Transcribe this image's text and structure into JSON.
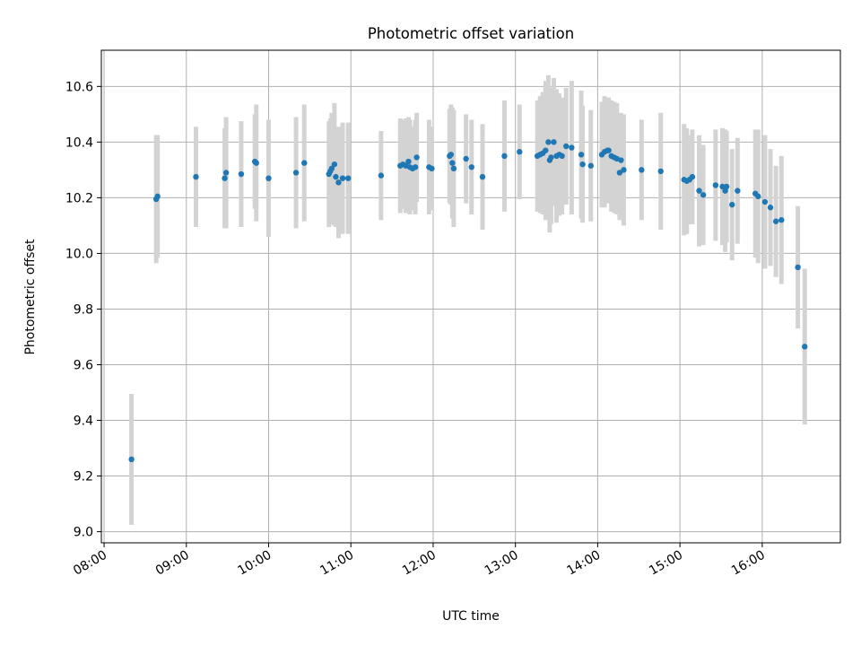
{
  "chart_data": {
    "type": "scatter",
    "title": "Photometric offset variation",
    "xlabel": "UTC time",
    "ylabel": "Photometric offset",
    "xlim": [
      "07:58",
      "16:57"
    ],
    "ylim": [
      8.96,
      10.73
    ],
    "grid": true,
    "x_ticks": [
      "08:00",
      "09:00",
      "10:00",
      "11:00",
      "12:00",
      "13:00",
      "14:00",
      "15:00",
      "16:00"
    ],
    "y_ticks": [
      "9.0",
      "9.2",
      "9.4",
      "9.6",
      "9.8",
      "10.0",
      "10.2",
      "10.4",
      "10.6"
    ],
    "colors": {
      "point": "#1f77b4",
      "errorbar": "#d3d3d3",
      "grid": "#b0b0b0"
    },
    "series": [
      {
        "x": [
          "08:20",
          "08:38",
          "08:39",
          "09:07",
          "09:28",
          "09:29",
          "09:40",
          "09:50",
          "09:51",
          "10:00",
          "10:20",
          "10:26",
          "10:44",
          "10:45",
          "10:46",
          "10:48",
          "10:49",
          "10:51",
          "10:54",
          "10:58",
          "11:22",
          "11:36",
          "11:38",
          "11:40",
          "11:42",
          "11:43",
          "11:45",
          "11:47",
          "11:48",
          "11:57",
          "11:59",
          "12:12",
          "12:13",
          "12:14",
          "12:15",
          "12:24",
          "12:28",
          "12:36",
          "12:52",
          "13:03",
          "13:16",
          "13:18",
          "13:20",
          "13:22",
          "13:24",
          "13:25",
          "13:26",
          "13:28",
          "13:30",
          "13:32",
          "13:34",
          "13:37",
          "13:41",
          "13:48",
          "13:49",
          "13:55",
          "14:03",
          "14:05",
          "14:07",
          "14:08",
          "14:10",
          "14:12",
          "14:14",
          "14:16",
          "14:17",
          "14:19",
          "14:32",
          "14:46",
          "15:03",
          "15:05",
          "15:07",
          "15:09",
          "15:14",
          "15:17",
          "15:26",
          "15:31",
          "15:33",
          "15:34",
          "15:38",
          "15:42",
          "15:55",
          "15:57",
          "16:02",
          "16:06",
          "16:10",
          "16:14",
          "16:26",
          "16:31"
        ],
        "y": [
          9.26,
          10.195,
          10.205,
          10.275,
          10.27,
          10.29,
          10.285,
          10.33,
          10.325,
          10.27,
          10.29,
          10.325,
          10.285,
          10.295,
          10.305,
          10.32,
          10.275,
          10.255,
          10.27,
          10.27,
          10.28,
          10.315,
          10.32,
          10.315,
          10.33,
          10.31,
          10.305,
          10.31,
          10.345,
          10.31,
          10.305,
          10.35,
          10.355,
          10.325,
          10.305,
          10.34,
          10.31,
          10.275,
          10.35,
          10.365,
          10.35,
          10.355,
          10.36,
          10.37,
          10.4,
          10.335,
          10.345,
          10.4,
          10.35,
          10.355,
          10.35,
          10.385,
          10.38,
          10.355,
          10.32,
          10.315,
          10.355,
          10.365,
          10.37,
          10.37,
          10.35,
          10.345,
          10.34,
          10.29,
          10.335,
          10.3,
          10.3,
          10.295,
          10.265,
          10.26,
          10.265,
          10.275,
          10.225,
          10.21,
          10.245,
          10.24,
          10.225,
          10.24,
          10.175,
          10.225,
          10.215,
          10.205,
          10.185,
          10.165,
          10.115,
          10.12,
          9.95,
          9.665
        ],
        "err": [
          0.235,
          0.23,
          0.22,
          0.18,
          0.18,
          0.2,
          0.19,
          0.17,
          0.21,
          0.21,
          0.2,
          0.21,
          0.19,
          0.19,
          0.2,
          0.22,
          0.18,
          0.2,
          0.2,
          0.2,
          0.16,
          0.17,
          0.16,
          0.17,
          0.16,
          0.17,
          0.15,
          0.17,
          0.16,
          0.17,
          0.15,
          0.17,
          0.18,
          0.2,
          0.21,
          0.16,
          0.17,
          0.19,
          0.2,
          0.17,
          0.2,
          0.21,
          0.22,
          0.25,
          0.24,
          0.26,
          0.24,
          0.23,
          0.24,
          0.22,
          0.21,
          0.21,
          0.24,
          0.23,
          0.21,
          0.2,
          0.19,
          0.2,
          0.19,
          0.19,
          0.2,
          0.2,
          0.2,
          0.17,
          0.17,
          0.2,
          0.18,
          0.21,
          0.2,
          0.19,
          0.16,
          0.17,
          0.2,
          0.18,
          0.2,
          0.21,
          0.22,
          0.2,
          0.2,
          0.19,
          0.23,
          0.24,
          0.24,
          0.21,
          0.2,
          0.23,
          0.22,
          0.28
        ]
      }
    ]
  }
}
